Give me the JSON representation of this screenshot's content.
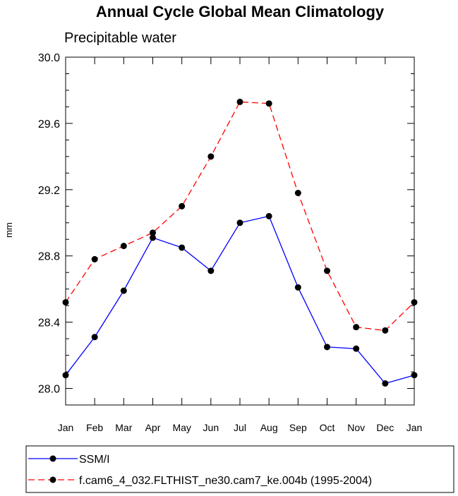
{
  "chart_data": {
    "type": "line",
    "title": "Annual Cycle Global Mean Climatology",
    "subtitle": "Precipitable water",
    "xlabel": "",
    "ylabel": "mm",
    "categories": [
      "Jan",
      "Feb",
      "Mar",
      "Apr",
      "May",
      "Jun",
      "Jul",
      "Aug",
      "Sep",
      "Oct",
      "Nov",
      "Dec",
      "Jan"
    ],
    "ylim": [
      27.9,
      30.0
    ],
    "yticks": [
      "28.0",
      "28.4",
      "28.8",
      "29.2",
      "29.6",
      "30.0"
    ],
    "ytick_values": [
      28.0,
      28.4,
      28.8,
      29.2,
      29.6,
      30.0
    ],
    "grid": false,
    "legend_position": "bottom",
    "series": [
      {
        "name": "SSM/I",
        "color": "#0000ff",
        "style": "solid",
        "values": [
          28.08,
          28.31,
          28.59,
          28.91,
          28.85,
          28.71,
          29.0,
          29.04,
          28.61,
          28.25,
          28.24,
          28.03,
          28.08
        ]
      },
      {
        "name": "f.cam6_4_032.FLTHIST_ne30.cam7_ke.004b (1995-2004)",
        "color": "#ff0000",
        "style": "dashed",
        "values": [
          28.52,
          28.78,
          28.86,
          28.94,
          29.1,
          29.4,
          29.73,
          29.72,
          29.18,
          28.71,
          28.37,
          28.35,
          28.52
        ]
      }
    ]
  }
}
